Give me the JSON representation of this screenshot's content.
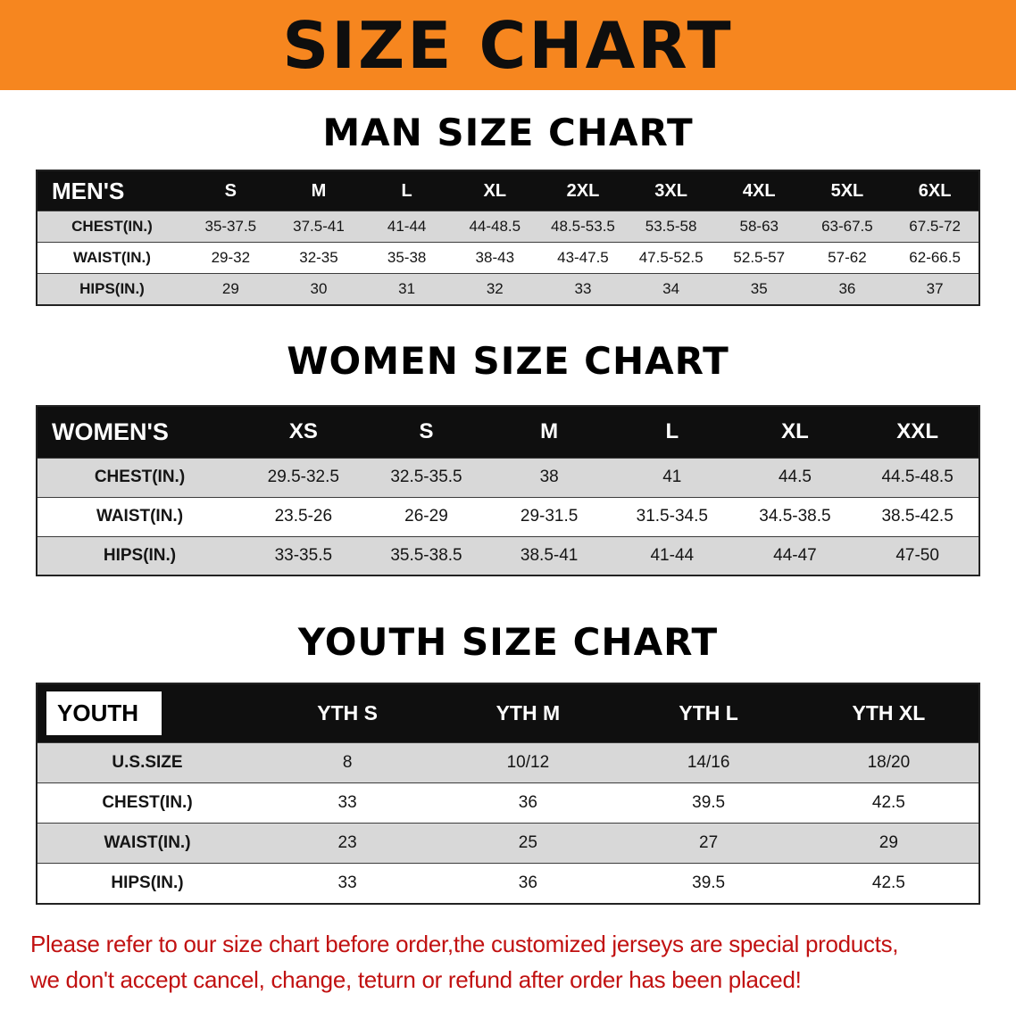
{
  "banner": {
    "title": "SIZE CHART"
  },
  "colors": {
    "banner_bg": "#f6861f",
    "table_header_bg": "#0f0f0f",
    "row_stripe": "#d8d8d8",
    "footer_text": "#c11111"
  },
  "sections": [
    {
      "heading": "MAN SIZE CHART",
      "table": {
        "label": "MEN'S",
        "columns": [
          "S",
          "M",
          "L",
          "XL",
          "2XL",
          "3XL",
          "4XL",
          "5XL",
          "6XL"
        ],
        "rows": [
          {
            "label": "CHEST(IN.)",
            "values": [
              "35-37.5",
              "37.5-41",
              "41-44",
              "44-48.5",
              "48.5-53.5",
              "53.5-58",
              "58-63",
              "63-67.5",
              "67.5-72"
            ]
          },
          {
            "label": "WAIST(IN.)",
            "values": [
              "29-32",
              "32-35",
              "35-38",
              "38-43",
              "43-47.5",
              "47.5-52.5",
              "52.5-57",
              "57-62",
              "62-66.5"
            ]
          },
          {
            "label": "HIPS(IN.)",
            "values": [
              "29",
              "30",
              "31",
              "32",
              "33",
              "34",
              "35",
              "36",
              "37"
            ]
          }
        ]
      }
    },
    {
      "heading": "WOMEN SIZE CHART",
      "table": {
        "label": "WOMEN'S",
        "columns": [
          "XS",
          "S",
          "M",
          "L",
          "XL",
          "XXL"
        ],
        "rows": [
          {
            "label": "CHEST(IN.)",
            "values": [
              "29.5-32.5",
              "32.5-35.5",
              "38",
              "41",
              "44.5",
              "44.5-48.5"
            ]
          },
          {
            "label": "WAIST(IN.)",
            "values": [
              "23.5-26",
              "26-29",
              "29-31.5",
              "31.5-34.5",
              "34.5-38.5",
              "38.5-42.5"
            ]
          },
          {
            "label": "HIPS(IN.)",
            "values": [
              "33-35.5",
              "35.5-38.5",
              "38.5-41",
              "41-44",
              "44-47",
              "47-50"
            ]
          }
        ]
      }
    },
    {
      "heading": "YOUTH SIZE CHART",
      "table": {
        "label": "YOUTH",
        "columns": [
          "YTH S",
          "YTH M",
          "YTH L",
          "YTH XL"
        ],
        "rows": [
          {
            "label": "U.S.SIZE",
            "values": [
              "8",
              "10/12",
              "14/16",
              "18/20"
            ]
          },
          {
            "label": "CHEST(IN.)",
            "values": [
              "33",
              "36",
              "39.5",
              "42.5"
            ]
          },
          {
            "label": "WAIST(IN.)",
            "values": [
              "23",
              "25",
              "27",
              "29"
            ]
          },
          {
            "label": "HIPS(IN.)",
            "values": [
              "33",
              "36",
              "39.5",
              "42.5"
            ]
          }
        ]
      }
    }
  ],
  "footer": {
    "line1": "Please refer to our size chart before order,the customized jerseys are special products,",
    "line2": "we don't accept cancel, change, teturn or refund after order has been placed!"
  }
}
